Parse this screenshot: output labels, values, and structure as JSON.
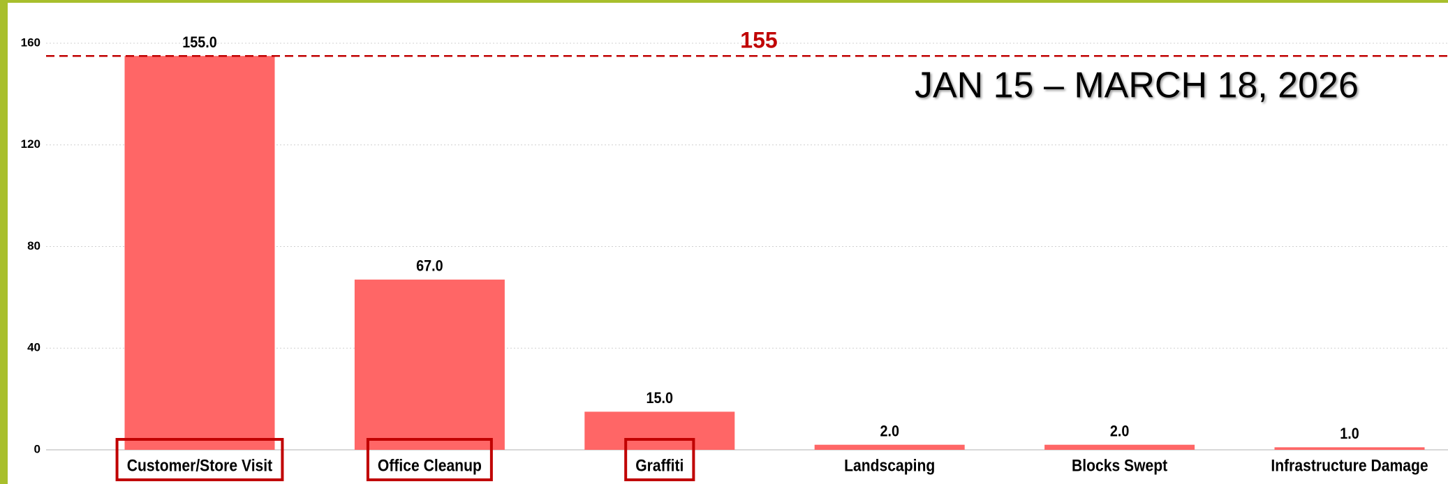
{
  "chart_data": {
    "type": "bar",
    "annotation": "JAN 15 – MARCH 18, 2026",
    "categories": [
      "Customer/Store Visit",
      "Office Cleanup",
      "Graffiti",
      "Landscaping",
      "Blocks Swept",
      "Infrastructure Damage"
    ],
    "values": [
      155,
      67,
      15,
      2,
      2,
      1
    ],
    "value_labels": [
      "155.0",
      "67.0",
      "15.0",
      "2.0",
      "2.0",
      "1.0"
    ],
    "highlighted": [
      true,
      true,
      true,
      false,
      false,
      false
    ],
    "color": "#ff6666",
    "ylim": [
      0,
      160
    ],
    "yticks": [
      0,
      40,
      80,
      120,
      160
    ],
    "grid": true,
    "reference_line": {
      "value": 155,
      "color": "#c00000"
    }
  }
}
